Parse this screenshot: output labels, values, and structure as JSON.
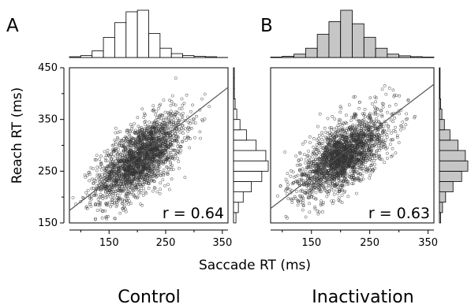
{
  "chart_data": [
    {
      "type": "scatter",
      "panel_label": "A",
      "condition": "Control",
      "r_text": "r = 0.64",
      "r": 0.64,
      "n_points": 2200,
      "point_color": "#333333",
      "xlabel": "Saccade RT (ms)",
      "ylabel": "Reach RT (ms)",
      "xlim": [
        80,
        360
      ],
      "ylim": [
        150,
        450
      ],
      "xticks": [
        150,
        250,
        350
      ],
      "yticks": [
        150,
        250,
        350,
        450
      ],
      "x_mean": 205,
      "x_sd": 38,
      "y_mean": 275,
      "y_sd": 42,
      "fit_line": [
        [
          80,
          174
        ],
        [
          360,
          412
        ]
      ],
      "hist_fill": "#ffffff",
      "x_hist": {
        "edges": [
          80,
          100,
          120,
          140,
          160,
          180,
          200,
          220,
          240,
          260,
          280,
          300,
          320,
          340,
          360
        ],
        "counts": [
          2,
          5,
          17,
          52,
          90,
          118,
          122,
          62,
          24,
          10,
          5,
          3,
          2,
          1
        ]
      },
      "y_hist": {
        "edges": [
          150,
          170,
          190,
          210,
          230,
          250,
          270,
          290,
          310,
          330,
          350,
          370,
          390,
          410,
          430,
          450
        ],
        "counts": [
          3,
          6,
          12,
          22,
          35,
          43,
          40,
          28,
          16,
          8,
          4,
          2,
          1,
          1,
          1
        ]
      },
      "grid": false
    },
    {
      "type": "scatter",
      "panel_label": "B",
      "condition": "Inactivation",
      "r_text": "r = 0.63",
      "r": 0.63,
      "n_points": 2200,
      "point_color": "#333333",
      "xlabel": "Saccade RT (ms)",
      "ylabel": "Reach RT (ms)",
      "xlim": [
        80,
        360
      ],
      "ylim": [
        150,
        450
      ],
      "xticks": [
        150,
        250,
        350
      ],
      "yticks": [
        150,
        250,
        350,
        450
      ],
      "x_mean": 205,
      "x_sd": 38,
      "y_mean": 280,
      "y_sd": 40,
      "fit_line": [
        [
          80,
          178
        ],
        [
          360,
          418
        ]
      ],
      "hist_fill": "#c6c6c6",
      "x_hist": {
        "edges": [
          80,
          100,
          120,
          140,
          160,
          180,
          200,
          220,
          240,
          260,
          280,
          300,
          320,
          340,
          360
        ],
        "counts": [
          1,
          3,
          8,
          22,
          55,
          85,
          112,
          80,
          48,
          22,
          8,
          4,
          2,
          1
        ]
      },
      "y_hist": {
        "edges": [
          150,
          170,
          190,
          210,
          230,
          250,
          270,
          290,
          310,
          330,
          350,
          370,
          390,
          410,
          430,
          450
        ],
        "counts": [
          2,
          5,
          10,
          22,
          36,
          46,
          42,
          30,
          17,
          8,
          4,
          2,
          1,
          1,
          1
        ]
      },
      "grid": false
    }
  ]
}
